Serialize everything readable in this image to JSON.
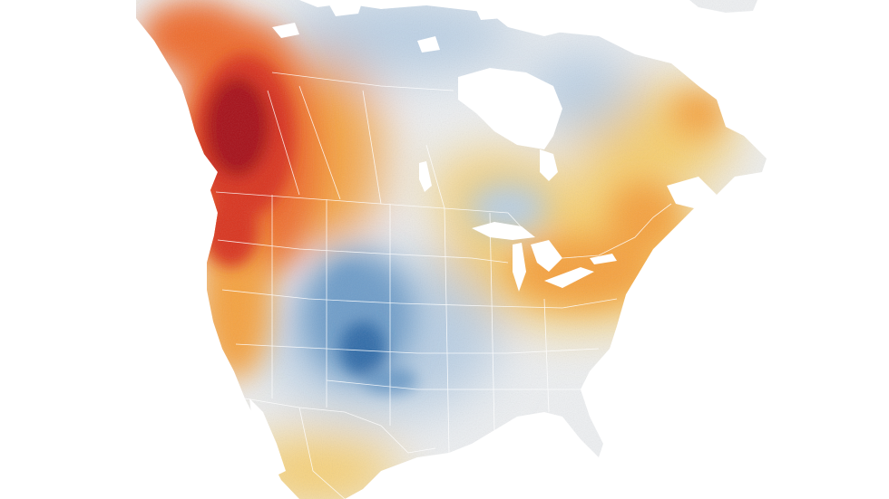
{
  "map": {
    "kind": "temperature-anomaly-map",
    "region": "north-america",
    "palette": {
      "hot_extreme": "#a50d12",
      "hot_strong": "#d9321e",
      "hot": "#ef6b2a",
      "warm": "#f6a13c",
      "mild_warm": "#f8cd6a",
      "neutral": "#eef0f2",
      "cool": "#b9cfe4",
      "cold": "#6d9cc9",
      "cold_strong": "#2d6aa8",
      "water": "#ffffff",
      "borders": "#ffffff"
    }
  }
}
